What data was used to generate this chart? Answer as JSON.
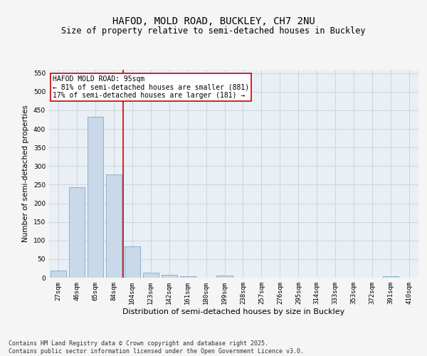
{
  "title": "HAFOD, MOLD ROAD, BUCKLEY, CH7 2NU",
  "subtitle": "Size of property relative to semi-detached houses in Buckley",
  "xlabel": "Distribution of semi-detached houses by size in Buckley",
  "ylabel": "Number of semi-detached properties",
  "bar_color": "#c9d9ea",
  "bar_edge_color": "#7aaacc",
  "grid_color": "#c8d0d8",
  "bg_color": "#eaeff5",
  "fig_color": "#f5f5f5",
  "categories": [
    "27sqm",
    "46sqm",
    "65sqm",
    "84sqm",
    "104sqm",
    "123sqm",
    "142sqm",
    "161sqm",
    "180sqm",
    "199sqm",
    "238sqm",
    "257sqm",
    "276sqm",
    "295sqm",
    "314sqm",
    "333sqm",
    "353sqm",
    "372sqm",
    "391sqm",
    "410sqm"
  ],
  "values": [
    20,
    243,
    432,
    277,
    85,
    13,
    8,
    3,
    0,
    5,
    0,
    0,
    0,
    0,
    0,
    0,
    0,
    0,
    3,
    0
  ],
  "ylim": [
    0,
    560
  ],
  "yticks": [
    0,
    50,
    100,
    150,
    200,
    250,
    300,
    350,
    400,
    450,
    500,
    550
  ],
  "vline_position": 3.5,
  "vline_color": "#cc0000",
  "annotation_text": "HAFOD MOLD ROAD: 95sqm\n← 81% of semi-detached houses are smaller (881)\n17% of semi-detached houses are larger (181) →",
  "annotation_box_color": "#ffffff",
  "annotation_box_edge_color": "#cc0000",
  "footer_text": "Contains HM Land Registry data © Crown copyright and database right 2025.\nContains public sector information licensed under the Open Government Licence v3.0.",
  "title_fontsize": 10,
  "subtitle_fontsize": 8.5,
  "ylabel_fontsize": 7.5,
  "xlabel_fontsize": 8,
  "tick_fontsize": 6.5,
  "annotation_fontsize": 7,
  "footer_fontsize": 6
}
